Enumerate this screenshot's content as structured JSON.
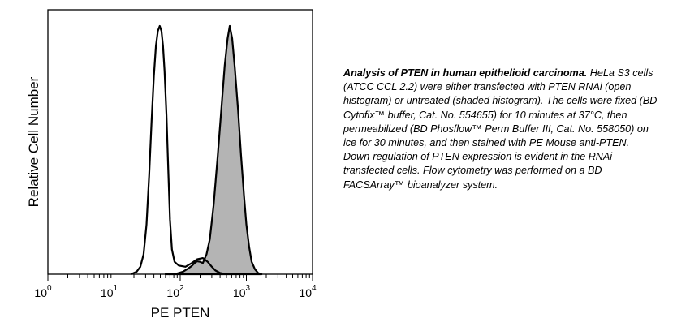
{
  "chart_data": {
    "type": "area",
    "xscale": "log",
    "xlim": [
      1,
      10000
    ],
    "xlabel": "PE PTEN",
    "ylabel": "Relative Cell Number",
    "xticks": [
      {
        "base": "10",
        "exp": "0",
        "value": 1
      },
      {
        "base": "10",
        "exp": "1",
        "value": 10
      },
      {
        "base": "10",
        "exp": "2",
        "value": 100
      },
      {
        "base": "10",
        "exp": "3",
        "value": 1000
      },
      {
        "base": "10",
        "exp": "4",
        "value": 10000
      }
    ],
    "series": [
      {
        "style": "shaded",
        "fill": "#b4b4b4",
        "points": [
          [
            60,
            0.0
          ],
          [
            90,
            0.003
          ],
          [
            110,
            0.01
          ],
          [
            130,
            0.022
          ],
          [
            150,
            0.034
          ],
          [
            165,
            0.045
          ],
          [
            180,
            0.052
          ],
          [
            200,
            0.05
          ],
          [
            220,
            0.045
          ],
          [
            250,
            0.08
          ],
          [
            280,
            0.14
          ],
          [
            320,
            0.28
          ],
          [
            370,
            0.48
          ],
          [
            420,
            0.67
          ],
          [
            470,
            0.84
          ],
          [
            520,
            0.95
          ],
          [
            560,
            1.0
          ],
          [
            610,
            0.95
          ],
          [
            670,
            0.83
          ],
          [
            750,
            0.66
          ],
          [
            830,
            0.48
          ],
          [
            920,
            0.32
          ],
          [
            1000,
            0.2
          ],
          [
            1100,
            0.11
          ],
          [
            1200,
            0.05
          ],
          [
            1350,
            0.02
          ],
          [
            1500,
            0.005
          ],
          [
            1700,
            0.0
          ]
        ]
      },
      {
        "style": "open",
        "fill": "none",
        "points": [
          [
            18,
            0.0
          ],
          [
            22,
            0.01
          ],
          [
            25,
            0.03
          ],
          [
            28,
            0.08
          ],
          [
            31,
            0.2
          ],
          [
            34,
            0.4
          ],
          [
            37,
            0.62
          ],
          [
            40,
            0.8
          ],
          [
            43,
            0.92
          ],
          [
            46,
            0.98
          ],
          [
            49,
            1.0
          ],
          [
            52,
            0.98
          ],
          [
            55,
            0.92
          ],
          [
            58,
            0.82
          ],
          [
            62,
            0.64
          ],
          [
            66,
            0.42
          ],
          [
            70,
            0.22
          ],
          [
            75,
            0.1
          ],
          [
            82,
            0.05
          ],
          [
            95,
            0.035
          ],
          [
            120,
            0.03
          ],
          [
            150,
            0.045
          ],
          [
            180,
            0.06
          ],
          [
            220,
            0.065
          ],
          [
            260,
            0.05
          ],
          [
            300,
            0.03
          ],
          [
            340,
            0.015
          ],
          [
            400,
            0.005
          ],
          [
            500,
            0.0
          ]
        ]
      }
    ]
  },
  "caption": {
    "title": "Analysis of PTEN in human epithelioid carcinoma.",
    "body": " HeLa S3 cells (ATCC CCL 2.2) were either transfected with PTEN RNAi (open histogram) or untreated (shaded histogram). The cells were fixed (BD Cytofix™ buffer, Cat. No. 554655) for 10 minutes at 37°C, then permeabilized (BD Phosflow™ Perm Buffer III, Cat. No. 558050) on ice for 30 minutes, and then stained with PE Mouse anti-PTEN.  Down-regulation of PTEN expression is evident in the RNAi-transfected cells. Flow cytometry was performed on a BD FACSArray™ bioanalyzer system."
  }
}
